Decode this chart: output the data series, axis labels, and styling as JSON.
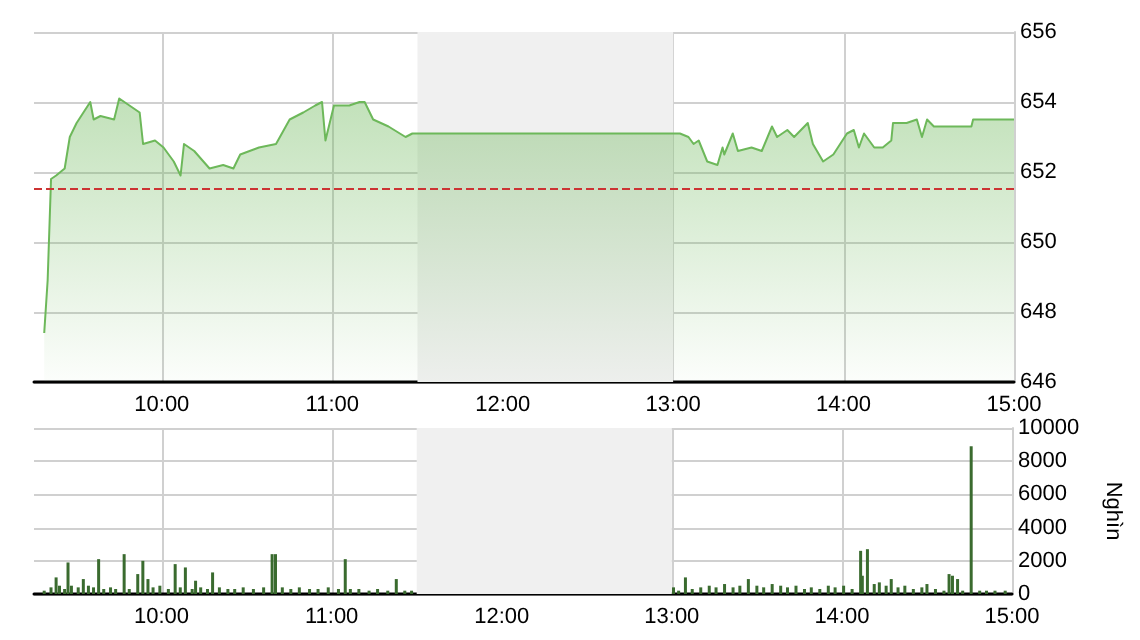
{
  "chart_data": [
    {
      "type": "area",
      "color": "#6db85a",
      "xlim": [
        9.25,
        15
      ],
      "xticks": [
        {
          "value": 10,
          "label": "10:00"
        },
        {
          "value": 11,
          "label": "11:00"
        },
        {
          "value": 12,
          "label": "12:00"
        },
        {
          "value": 13,
          "label": "13:00"
        },
        {
          "value": 14,
          "label": "14:00"
        },
        {
          "value": 15,
          "label": "15:00"
        }
      ],
      "ylim": [
        646,
        656
      ],
      "yticks": [
        646,
        648,
        650,
        652,
        654,
        656
      ],
      "grid": true,
      "ref_lines": [
        {
          "axis": "y",
          "value": 651.5,
          "color": "#cc3333",
          "line_style": "dashed"
        }
      ],
      "bands": [
        {
          "axis": "x",
          "from": 11.5,
          "to": 13,
          "color": "#f0f0f0"
        }
      ],
      "x": [
        9.31,
        9.33,
        9.35,
        9.38,
        9.43,
        9.46,
        9.5,
        9.58,
        9.6,
        9.64,
        9.72,
        9.75,
        9.81,
        9.87,
        9.89,
        9.96,
        10.01,
        10.07,
        10.11,
        10.13,
        10.19,
        10.28,
        10.36,
        10.42,
        10.46,
        10.57,
        10.67,
        10.75,
        10.83,
        10.9,
        10.94,
        10.96,
        11.01,
        11.1,
        11.16,
        11.19,
        11.24,
        11.33,
        11.43,
        11.47,
        11.51,
        13.01,
        13.04,
        13.09,
        13.12,
        13.15,
        13.2,
        13.26,
        13.29,
        13.3,
        13.35,
        13.38,
        13.46,
        13.52,
        13.58,
        13.61,
        13.67,
        13.71,
        13.79,
        13.82,
        13.88,
        13.94,
        14.02,
        14.06,
        14.09,
        14.12,
        14.18,
        14.23,
        14.28,
        14.29,
        14.37,
        14.43,
        14.46,
        14.49,
        14.53,
        14.75,
        14.76,
        15
      ],
      "values": [
        647.4,
        648.9,
        651.8,
        651.9,
        652.1,
        653,
        653.4,
        654,
        653.5,
        653.6,
        653.5,
        654.1,
        653.9,
        653.7,
        652.8,
        652.9,
        652.7,
        652.3,
        651.9,
        652.8,
        652.6,
        652.1,
        652.2,
        652.1,
        652.5,
        652.7,
        652.8,
        653.5,
        653.7,
        653.9,
        654,
        652.9,
        653.9,
        653.9,
        654,
        654,
        653.5,
        653.3,
        653,
        653.1,
        653.1,
        653.1,
        653.1,
        653,
        652.8,
        652.9,
        652.3,
        652.2,
        652.7,
        652.5,
        653.1,
        652.6,
        652.7,
        652.6,
        653.3,
        653,
        653.2,
        653,
        653.4,
        652.8,
        652.3,
        652.5,
        653.1,
        653.2,
        652.7,
        653.1,
        652.7,
        652.7,
        652.9,
        653.4,
        653.4,
        653.5,
        653,
        653.5,
        653.3,
        653.3,
        653.5,
        653.5
      ]
    },
    {
      "type": "bar",
      "color": "#3a6b2f",
      "ylabel": "Nghìn",
      "xlim": [
        9.25,
        15
      ],
      "xticks": [
        {
          "value": 10,
          "label": "10:00"
        },
        {
          "value": 11,
          "label": "11:00"
        },
        {
          "value": 12,
          "label": "12:00"
        },
        {
          "value": 13,
          "label": "13:00"
        },
        {
          "value": 14,
          "label": "14:00"
        },
        {
          "value": 15,
          "label": "15:00"
        }
      ],
      "ylim": [
        0,
        10000
      ],
      "yticks": [
        0,
        2000,
        4000,
        6000,
        8000,
        10000
      ],
      "grid": true,
      "bands": [
        {
          "axis": "x",
          "from": 11.5,
          "to": 13,
          "color": "#f0f0f0"
        }
      ],
      "x": [
        9.31,
        9.35,
        9.38,
        9.4,
        9.43,
        9.45,
        9.47,
        9.51,
        9.54,
        9.57,
        9.6,
        9.63,
        9.66,
        9.7,
        9.73,
        9.78,
        9.81,
        9.86,
        9.89,
        9.92,
        9.95,
        9.99,
        10.04,
        10.08,
        10.11,
        10.14,
        10.18,
        10.2,
        10.23,
        10.27,
        10.3,
        10.34,
        10.39,
        10.43,
        10.48,
        10.54,
        10.6,
        10.65,
        10.67,
        10.71,
        10.76,
        10.81,
        10.87,
        10.92,
        10.98,
        11.04,
        11.08,
        11.11,
        11.16,
        11.22,
        11.27,
        11.33,
        11.38,
        11.43,
        11.47,
        13.01,
        13.04,
        13.08,
        13.12,
        13.17,
        13.22,
        13.26,
        13.31,
        13.36,
        13.4,
        13.45,
        13.5,
        13.54,
        13.59,
        13.64,
        13.68,
        13.73,
        13.78,
        13.82,
        13.87,
        13.92,
        13.96,
        14.01,
        14.06,
        14.11,
        14.12,
        14.15,
        14.19,
        14.22,
        14.26,
        14.29,
        14.33,
        14.37,
        14.42,
        14.47,
        14.5,
        14.55,
        14.6,
        14.63,
        14.65,
        14.68,
        14.71,
        14.76,
        14.81,
        14.85,
        14.9,
        14.96
      ],
      "values": [
        200,
        400,
        1000,
        500,
        300,
        1900,
        500,
        400,
        900,
        500,
        400,
        2100,
        300,
        400,
        300,
        2400,
        300,
        1200,
        2000,
        900,
        400,
        500,
        300,
        1800,
        400,
        1600,
        300,
        800,
        400,
        300,
        1300,
        400,
        300,
        300,
        400,
        300,
        400,
        2400,
        2400,
        400,
        300,
        400,
        300,
        300,
        400,
        300,
        2100,
        300,
        300,
        200,
        300,
        200,
        900,
        200,
        200,
        400,
        200,
        1000,
        300,
        400,
        500,
        400,
        600,
        400,
        500,
        900,
        500,
        400,
        600,
        500,
        400,
        500,
        300,
        400,
        300,
        500,
        400,
        500,
        300,
        2600,
        1100,
        2700,
        600,
        700,
        500,
        900,
        400,
        500,
        300,
        400,
        600,
        300,
        200,
        1200,
        1100,
        900,
        200,
        8900,
        200,
        200,
        200,
        200
      ]
    }
  ]
}
